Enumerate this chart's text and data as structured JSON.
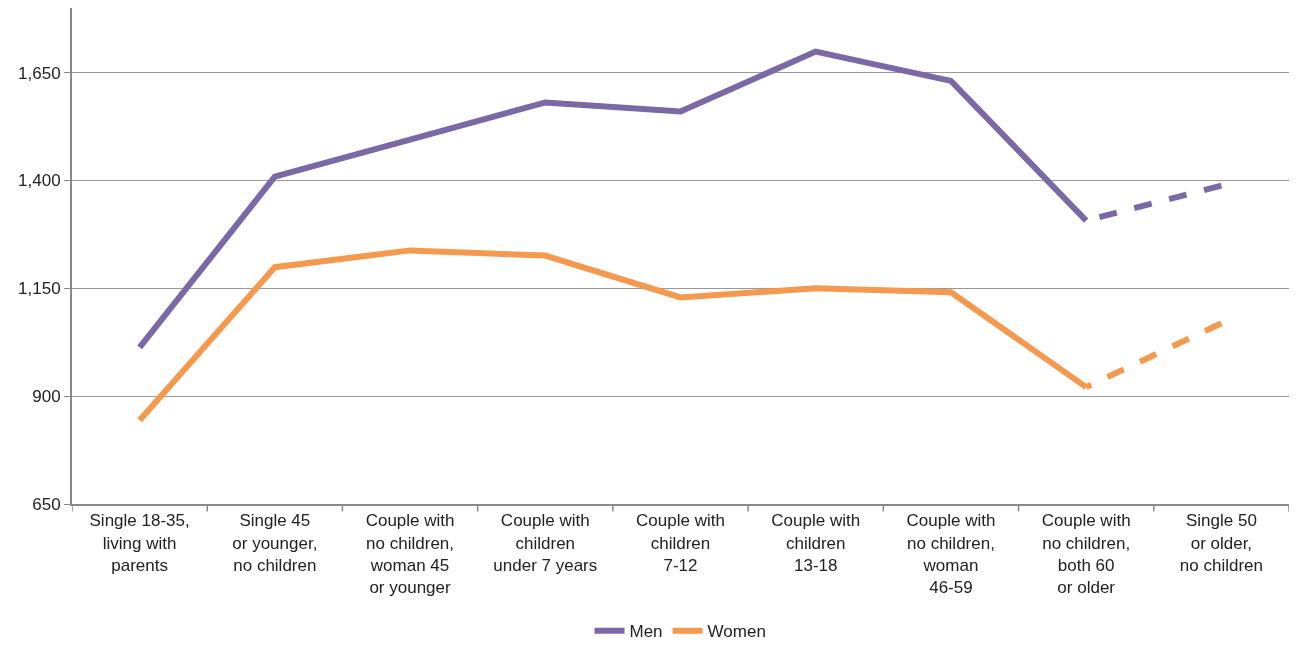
{
  "chart_data": {
    "type": "line",
    "categories": [
      "Single 18-35,\nliving with\nparents",
      "Single 45\nor younger,\nno children",
      "Couple with\nno children,\nwoman 45\nor younger",
      "Couple with\nchildren\nunder 7 years",
      "Couple with\nchildren\n7-12",
      "Couple with\nchildren\n13-18",
      "Couple with\nno children,\nwoman\n46-59",
      "Couple with\nno children,\nboth 60\nor older",
      "Single 50\nor older,\nno children"
    ],
    "series": [
      {
        "name": "Men",
        "color": "#7b68a6",
        "values": [
          1013,
          1409,
          1495,
          1581,
          1560,
          1699,
          1631,
          1307,
          null
        ]
      },
      {
        "name": "Women",
        "color": "#f5994e",
        "values": [
          844,
          1199,
          1238,
          1226,
          1129,
          1150,
          1141,
          921,
          null
        ]
      },
      {
        "color": "#7b68a6",
        "line_style": "dashed",
        "values": [
          null,
          null,
          null,
          null,
          null,
          null,
          null,
          1307,
          1388
        ]
      },
      {
        "color": "#f5994e",
        "line_style": "dashed",
        "values": [
          null,
          null,
          null,
          null,
          null,
          null,
          null,
          921,
          1069
        ]
      }
    ],
    "ylim": [
      650,
      1800
    ],
    "yticks": [
      {
        "value": 650,
        "label": "650"
      },
      {
        "value": 900,
        "label": "900"
      },
      {
        "value": 1150,
        "label": "1,150"
      },
      {
        "value": 1400,
        "label": "1,400"
      },
      {
        "value": 1650,
        "label": "1,650"
      }
    ],
    "grid": "y",
    "legend": "bottom",
    "marker": "none",
    "line_style": "solid"
  }
}
